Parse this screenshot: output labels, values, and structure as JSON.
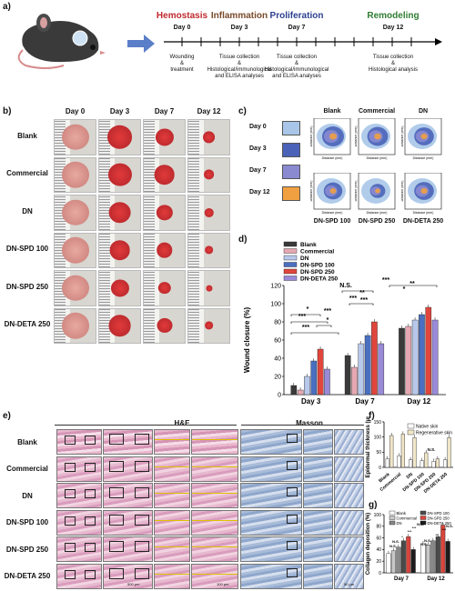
{
  "panel_labels": {
    "a": "a)",
    "b": "b)",
    "c": "c)",
    "d": "d)",
    "e": "e)",
    "f": "f)",
    "g": "g)"
  },
  "timeline": {
    "phases": [
      {
        "name": "Hemostasis",
        "day": "Day 0",
        "color": "#c0282d",
        "note": "Wounding\n&\ntreatment"
      },
      {
        "name": "Inflammation",
        "day": "Day 3",
        "color": "#7a4a2a",
        "note": "Tissue collection\n&\nHistological/immunological\nand ELISA analyses"
      },
      {
        "name": "Proliferation",
        "day": "Day 7",
        "color": "#2c3f8f",
        "note": "Tissue collection\n&\nHistological/immunological\nand ELISA analyses"
      },
      {
        "name": "Remodeling",
        "day": "Day 12",
        "color": "#2f7d32",
        "note": "Tissue collection\n&\nHistological analysis"
      }
    ]
  },
  "photos": {
    "days": [
      "Day 0",
      "Day 3",
      "Day 7",
      "Day 12"
    ],
    "groups": [
      "Blank",
      "Commercial",
      "DN",
      "DN-SPD 100",
      "DN-SPD 250",
      "DN-DETA 250"
    ],
    "wound_fraction": [
      [
        1.0,
        0.92,
        0.62,
        0.38
      ],
      [
        1.0,
        0.85,
        0.72,
        0.3
      ],
      [
        1.0,
        0.8,
        0.55,
        0.25
      ],
      [
        1.0,
        0.72,
        0.52,
        0.22
      ],
      [
        1.0,
        0.62,
        0.4,
        0.12
      ],
      [
        1.0,
        0.8,
        0.5,
        0.22
      ]
    ]
  },
  "traces": {
    "legend": [
      {
        "label": "Day 0",
        "color": "#a9c6e8"
      },
      {
        "label": "Day 3",
        "color": "#4a63b8"
      },
      {
        "label": "Day 7",
        "color": "#8a8ad0"
      },
      {
        "label": "Day 12",
        "color": "#f0a040"
      }
    ],
    "groups": [
      "Blank",
      "Commercial",
      "DN",
      "DN-SPD 100",
      "DN-SPD 250",
      "DN-DETA 250"
    ],
    "axis_x": "Distance (mm)",
    "axis_y": "Distance (mm)"
  },
  "chart_data": [
    {
      "type": "bar",
      "panel": "d",
      "ylabel": "Wound closure (%)",
      "ylim": [
        0,
        120
      ],
      "yticks": [
        0,
        20,
        40,
        60,
        80,
        100,
        120
      ],
      "categories": [
        "Day 3",
        "Day 7",
        "Day 12"
      ],
      "series": [
        {
          "name": "Blank",
          "color": "#3a3a3a",
          "values": [
            10,
            43,
            73
          ]
        },
        {
          "name": "Commercial",
          "color": "#e6a8b2",
          "values": [
            5,
            30,
            75
          ]
        },
        {
          "name": "DN",
          "color": "#b7c8ea",
          "values": [
            20,
            56,
            82
          ]
        },
        {
          "name": "DN-SPD 100",
          "color": "#4a6fc0",
          "values": [
            37,
            65,
            88
          ]
        },
        {
          "name": "DN-SPD 250",
          "color": "#e0463c",
          "values": [
            50,
            80,
            96
          ]
        },
        {
          "name": "DN-DETA 250",
          "color": "#9a8ad8",
          "values": [
            28,
            56,
            82
          ]
        }
      ],
      "annotations": [
        "*",
        "***",
        "***",
        "*",
        "***",
        "N.S.",
        "***",
        "**",
        "***",
        "***",
        "*",
        "**"
      ]
    },
    {
      "type": "bar",
      "panel": "f",
      "ylabel": "Epidermal thickness (μm)",
      "ylim": [
        0,
        150
      ],
      "yticks": [
        0,
        50,
        100,
        150
      ],
      "categories": [
        "Blank",
        "Commercial",
        "DN",
        "DN-SPD 100",
        "DN-SPD 250",
        "DN-DETA 250"
      ],
      "series": [
        {
          "name": "Native skin",
          "color": "#ffffff",
          "values": [
            28,
            38,
            25,
            22,
            20,
            25
          ]
        },
        {
          "name": "Regenerative skin",
          "color": "#f0e6c8",
          "values": [
            105,
            110,
            98,
            48,
            28,
            98
          ]
        }
      ],
      "annotations": [
        "N.S."
      ]
    },
    {
      "type": "bar",
      "panel": "g",
      "ylabel": "Collagen deposition (%)",
      "ylim": [
        0,
        100
      ],
      "yticks": [
        0,
        20,
        40,
        60,
        80,
        100
      ],
      "categories": [
        "Day 7",
        "Day 12"
      ],
      "series": [
        {
          "name": "Blank",
          "color": "#ffffff",
          "values": [
            33,
            50
          ]
        },
        {
          "name": "Commercial",
          "color": "#c8c8c8",
          "values": [
            38,
            48
          ]
        },
        {
          "name": "DN",
          "color": "#888888",
          "values": [
            44,
            55
          ]
        },
        {
          "name": "DN-SPD 100",
          "color": "#4a4a4a",
          "values": [
            55,
            62
          ]
        },
        {
          "name": "DN-SPD 250",
          "color": "#d8453c",
          "values": [
            62,
            82
          ]
        },
        {
          "name": "DN-DETA 250",
          "color": "#1c1c1c",
          "values": [
            40,
            54
          ]
        }
      ],
      "annotations": [
        "N.S.",
        "N.S.",
        "*",
        "***",
        "***",
        "N.S.",
        "N.S.",
        "N.S.",
        "**",
        "***",
        "N.S."
      ]
    }
  ],
  "histology": {
    "he_label": "H&E",
    "masson_label": "Masson",
    "groups": [
      "Blank",
      "Commercial",
      "DN",
      "DN-SPD 100",
      "DN-SPD 250",
      "DN-DETA 250"
    ],
    "scale_bars": [
      "500 μm",
      "100 μm",
      "50 μm"
    ]
  }
}
